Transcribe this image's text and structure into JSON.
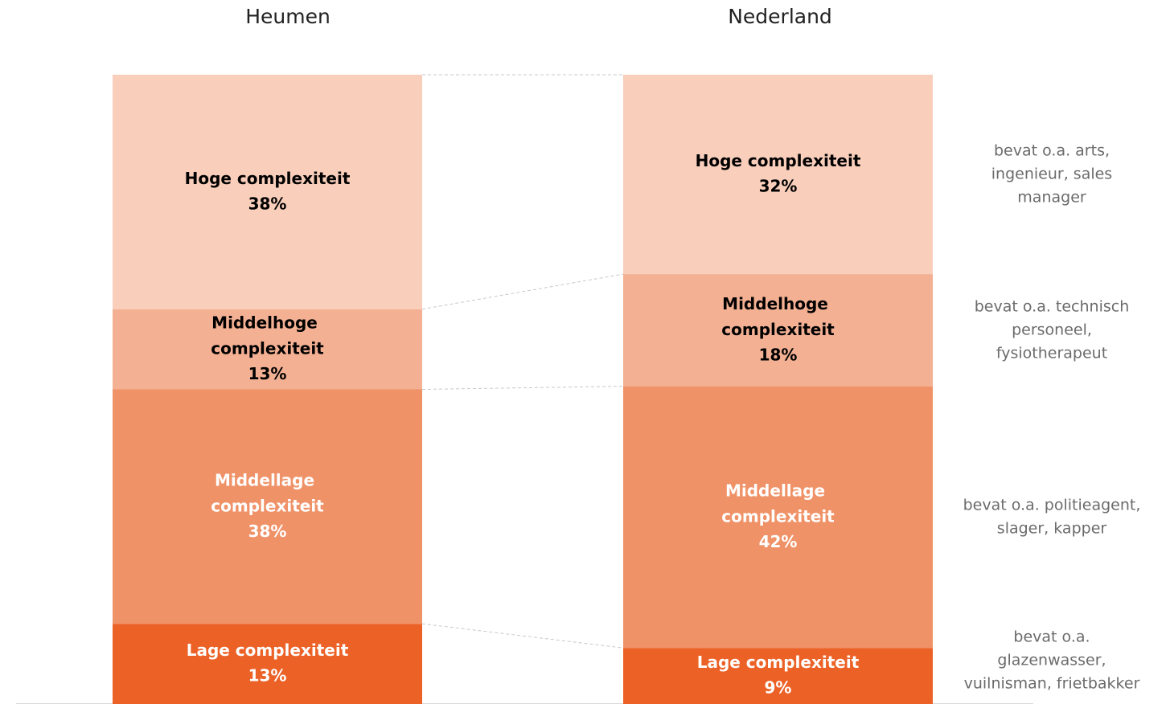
{
  "chart_data": {
    "type": "stacked_bar_100",
    "categories": [
      "Heumen",
      "Nederland"
    ],
    "series": [
      {
        "name": "Lage complexiteit",
        "color": "#ec6126",
        "text_color": "#ffffff",
        "values": [
          13,
          9
        ],
        "value_labels": [
          "13%",
          "9%"
        ]
      },
      {
        "name": "Middellage complexiteit",
        "color": "#f09267",
        "text_color": "#ffffff",
        "values": [
          38,
          42
        ],
        "value_labels": [
          "38%",
          "42%"
        ]
      },
      {
        "name": "Middelhoge complexiteit",
        "color": "#f4b093",
        "text_color": "#000000",
        "values": [
          13,
          18
        ],
        "value_labels": [
          "13%",
          "18%"
        ]
      },
      {
        "name": "Hoge complexiteit",
        "color": "#f9cebb",
        "text_color": "#000000",
        "values": [
          38,
          32
        ],
        "value_labels": [
          "38%",
          "32%"
        ]
      }
    ],
    "annotations": [
      [
        "bevat o.a.",
        "glazenwasser,",
        "vuilnisman, frietbakker"
      ],
      [
        "bevat o.a. politieagent,",
        "slager, kapper"
      ],
      [
        "bevat o.a. technisch",
        "personeel,",
        "fysiotherapeut"
      ],
      [
        "bevat o.a. arts,",
        "ingenieur, sales",
        "manager"
      ]
    ]
  }
}
